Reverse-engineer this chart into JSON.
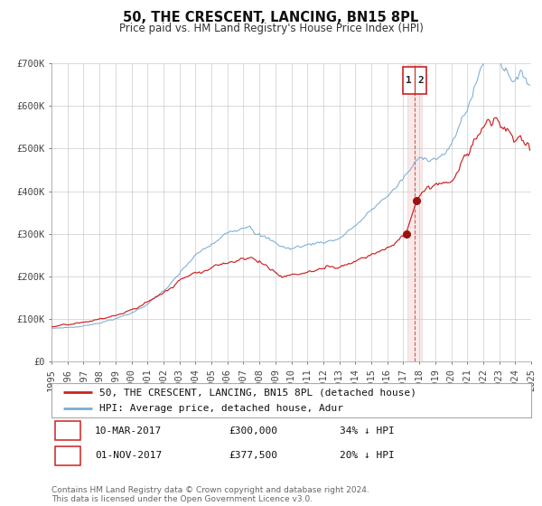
{
  "title": "50, THE CRESCENT, LANCING, BN15 8PL",
  "subtitle": "Price paid vs. HM Land Registry's House Price Index (HPI)",
  "ylim": [
    0,
    700000
  ],
  "yticks": [
    0,
    100000,
    200000,
    300000,
    400000,
    500000,
    600000,
    700000
  ],
  "ytick_labels": [
    "£0",
    "£100K",
    "£200K",
    "£300K",
    "£400K",
    "£500K",
    "£600K",
    "£700K"
  ],
  "x_start_year": 1995,
  "x_end_year": 2025,
  "hpi_color": "#7aadd4",
  "price_color": "#cc2222",
  "dot_color": "#991111",
  "vline_color": "#cc3333",
  "bg_color": "#ffffff",
  "grid_color": "#cccccc",
  "legend_label_price": "50, THE CRESCENT, LANCING, BN15 8PL (detached house)",
  "legend_label_hpi": "HPI: Average price, detached house, Adur",
  "sale1_date": "10-MAR-2017",
  "sale1_price": "£300,000",
  "sale1_pct": "34% ↓ HPI",
  "sale2_date": "01-NOV-2017",
  "sale2_price": "£377,500",
  "sale2_pct": "20% ↓ HPI",
  "sale1_year": 2017.19,
  "sale2_year": 2017.83,
  "sale1_value": 300000,
  "sale2_value": 377500,
  "vline_x": 2017.7,
  "footer": "Contains HM Land Registry data © Crown copyright and database right 2024.\nThis data is licensed under the Open Government Licence v3.0.",
  "title_fontsize": 10.5,
  "subtitle_fontsize": 8.5,
  "tick_fontsize": 7.5,
  "legend_fontsize": 8,
  "footer_fontsize": 6.5
}
